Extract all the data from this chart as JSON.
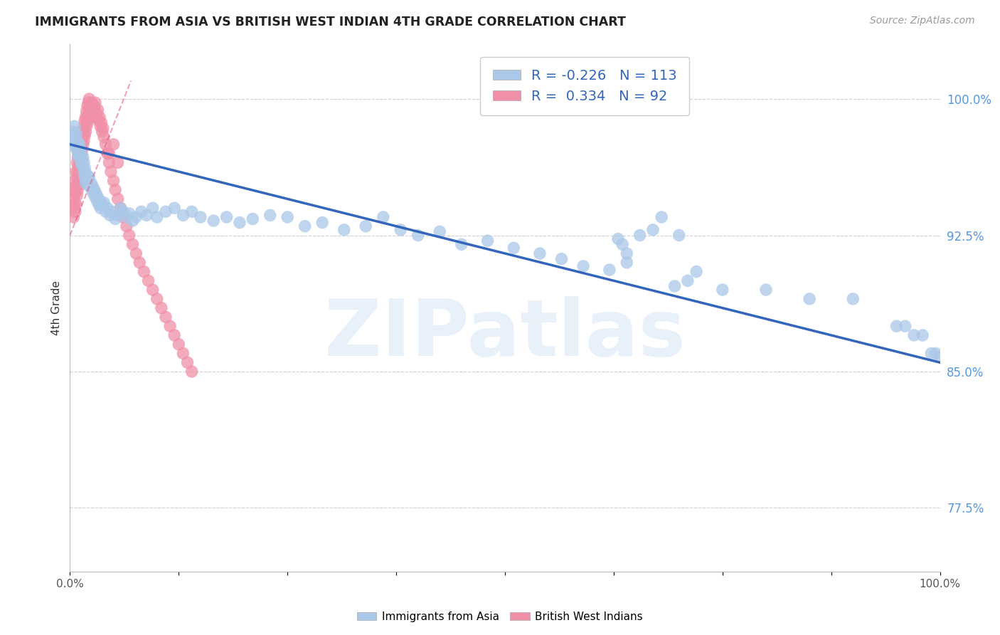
{
  "title": "IMMIGRANTS FROM ASIA VS BRITISH WEST INDIAN 4TH GRADE CORRELATION CHART",
  "source": "Source: ZipAtlas.com",
  "ylabel": "4th Grade",
  "watermark": "ZIPatlas",
  "legend_labels_bottom": [
    "Immigrants from Asia",
    "British West Indians"
  ],
  "blue_color": "#aac8e8",
  "blue_line_color": "#3366bb",
  "pink_color": "#f090a8",
  "pink_line_color": "#dd5577",
  "ytick_color": "#5599dd",
  "title_color": "#222222",
  "background_color": "#ffffff",
  "grid_color": "#cccccc",
  "xlim": [
    0.0,
    1.0
  ],
  "ylim": [
    0.74,
    1.03
  ],
  "ytick_vals": [
    0.775,
    0.85,
    0.925,
    1.0
  ],
  "ytick_labels": [
    "77.5%",
    "85.0%",
    "92.5%",
    "100.0%"
  ],
  "blue_R": -0.226,
  "blue_N": 113,
  "pink_R": 0.334,
  "pink_N": 92,
  "blue_trend": [
    0.0,
    0.975,
    1.0,
    0.855
  ],
  "pink_trend_x": [
    0.0,
    0.07
  ],
  "pink_trend_y": [
    0.925,
    1.01
  ],
  "blue_x": [
    0.003,
    0.004,
    0.005,
    0.005,
    0.006,
    0.006,
    0.007,
    0.007,
    0.008,
    0.008,
    0.009,
    0.009,
    0.01,
    0.01,
    0.011,
    0.011,
    0.012,
    0.012,
    0.013,
    0.013,
    0.014,
    0.015,
    0.015,
    0.016,
    0.016,
    0.017,
    0.017,
    0.018,
    0.018,
    0.019,
    0.02,
    0.02,
    0.021,
    0.022,
    0.023,
    0.024,
    0.025,
    0.026,
    0.027,
    0.028,
    0.029,
    0.03,
    0.031,
    0.032,
    0.033,
    0.034,
    0.035,
    0.037,
    0.039,
    0.041,
    0.043,
    0.046,
    0.048,
    0.052,
    0.055,
    0.058,
    0.061,
    0.065,
    0.068,
    0.072,
    0.076,
    0.082,
    0.088,
    0.095,
    0.1,
    0.11,
    0.12,
    0.13,
    0.14,
    0.15,
    0.165,
    0.18,
    0.195,
    0.21,
    0.23,
    0.25,
    0.27,
    0.29,
    0.315,
    0.34,
    0.36,
    0.38,
    0.4,
    0.425,
    0.45,
    0.48,
    0.51,
    0.54,
    0.565,
    0.59,
    0.62,
    0.64,
    0.655,
    0.67,
    0.68,
    0.7,
    0.75,
    0.8,
    0.85,
    0.9,
    0.95,
    0.96,
    0.97,
    0.98,
    0.99,
    0.995,
    1.0,
    0.63,
    0.635,
    0.64,
    0.695,
    0.71,
    0.72
  ],
  "blue_y": [
    0.98,
    0.982,
    0.978,
    0.985,
    0.979,
    0.974,
    0.981,
    0.975,
    0.977,
    0.972,
    0.976,
    0.971,
    0.973,
    0.968,
    0.975,
    0.97,
    0.972,
    0.967,
    0.969,
    0.964,
    0.966,
    0.968,
    0.963,
    0.965,
    0.96,
    0.962,
    0.957,
    0.959,
    0.954,
    0.956,
    0.958,
    0.953,
    0.955,
    0.957,
    0.952,
    0.954,
    0.95,
    0.952,
    0.948,
    0.95,
    0.946,
    0.948,
    0.944,
    0.946,
    0.942,
    0.944,
    0.94,
    0.942,
    0.943,
    0.938,
    0.94,
    0.936,
    0.938,
    0.934,
    0.936,
    0.94,
    0.938,
    0.935,
    0.937,
    0.933,
    0.935,
    0.938,
    0.936,
    0.94,
    0.935,
    0.938,
    0.94,
    0.936,
    0.938,
    0.935,
    0.933,
    0.935,
    0.932,
    0.934,
    0.936,
    0.935,
    0.93,
    0.932,
    0.928,
    0.93,
    0.935,
    0.928,
    0.925,
    0.927,
    0.92,
    0.922,
    0.918,
    0.915,
    0.912,
    0.908,
    0.906,
    0.91,
    0.925,
    0.928,
    0.935,
    0.925,
    0.895,
    0.895,
    0.89,
    0.89,
    0.875,
    0.875,
    0.87,
    0.87,
    0.86,
    0.86,
    0.858,
    0.923,
    0.92,
    0.915,
    0.897,
    0.9,
    0.905
  ],
  "pink_x": [
    0.003,
    0.004,
    0.004,
    0.005,
    0.005,
    0.006,
    0.006,
    0.006,
    0.007,
    0.007,
    0.007,
    0.008,
    0.008,
    0.008,
    0.009,
    0.009,
    0.009,
    0.01,
    0.01,
    0.01,
    0.011,
    0.011,
    0.011,
    0.012,
    0.012,
    0.013,
    0.013,
    0.014,
    0.014,
    0.015,
    0.015,
    0.016,
    0.016,
    0.017,
    0.017,
    0.018,
    0.018,
    0.019,
    0.019,
    0.02,
    0.02,
    0.021,
    0.021,
    0.022,
    0.022,
    0.023,
    0.024,
    0.025,
    0.025,
    0.026,
    0.027,
    0.028,
    0.029,
    0.03,
    0.031,
    0.032,
    0.033,
    0.034,
    0.035,
    0.036,
    0.037,
    0.038,
    0.039,
    0.041,
    0.043,
    0.045,
    0.047,
    0.05,
    0.052,
    0.055,
    0.058,
    0.061,
    0.065,
    0.068,
    0.072,
    0.076,
    0.08,
    0.085,
    0.09,
    0.095,
    0.1,
    0.105,
    0.11,
    0.115,
    0.12,
    0.125,
    0.13,
    0.135,
    0.14,
    0.045,
    0.05,
    0.055
  ],
  "pink_y": [
    0.94,
    0.945,
    0.935,
    0.95,
    0.942,
    0.955,
    0.948,
    0.938,
    0.96,
    0.952,
    0.942,
    0.965,
    0.957,
    0.947,
    0.968,
    0.96,
    0.95,
    0.97,
    0.963,
    0.953,
    0.973,
    0.965,
    0.955,
    0.975,
    0.967,
    0.977,
    0.969,
    0.98,
    0.972,
    0.983,
    0.975,
    0.985,
    0.977,
    0.988,
    0.98,
    0.99,
    0.982,
    0.993,
    0.985,
    0.996,
    0.987,
    0.998,
    0.99,
    1.0,
    0.992,
    0.994,
    0.996,
    0.998,
    0.99,
    0.992,
    0.994,
    0.996,
    0.998,
    0.99,
    0.992,
    0.994,
    0.988,
    0.99,
    0.985,
    0.987,
    0.982,
    0.984,
    0.979,
    0.975,
    0.97,
    0.965,
    0.96,
    0.955,
    0.95,
    0.945,
    0.94,
    0.935,
    0.93,
    0.925,
    0.92,
    0.915,
    0.91,
    0.905,
    0.9,
    0.895,
    0.89,
    0.885,
    0.88,
    0.875,
    0.87,
    0.865,
    0.86,
    0.855,
    0.85,
    0.97,
    0.975,
    0.965
  ]
}
